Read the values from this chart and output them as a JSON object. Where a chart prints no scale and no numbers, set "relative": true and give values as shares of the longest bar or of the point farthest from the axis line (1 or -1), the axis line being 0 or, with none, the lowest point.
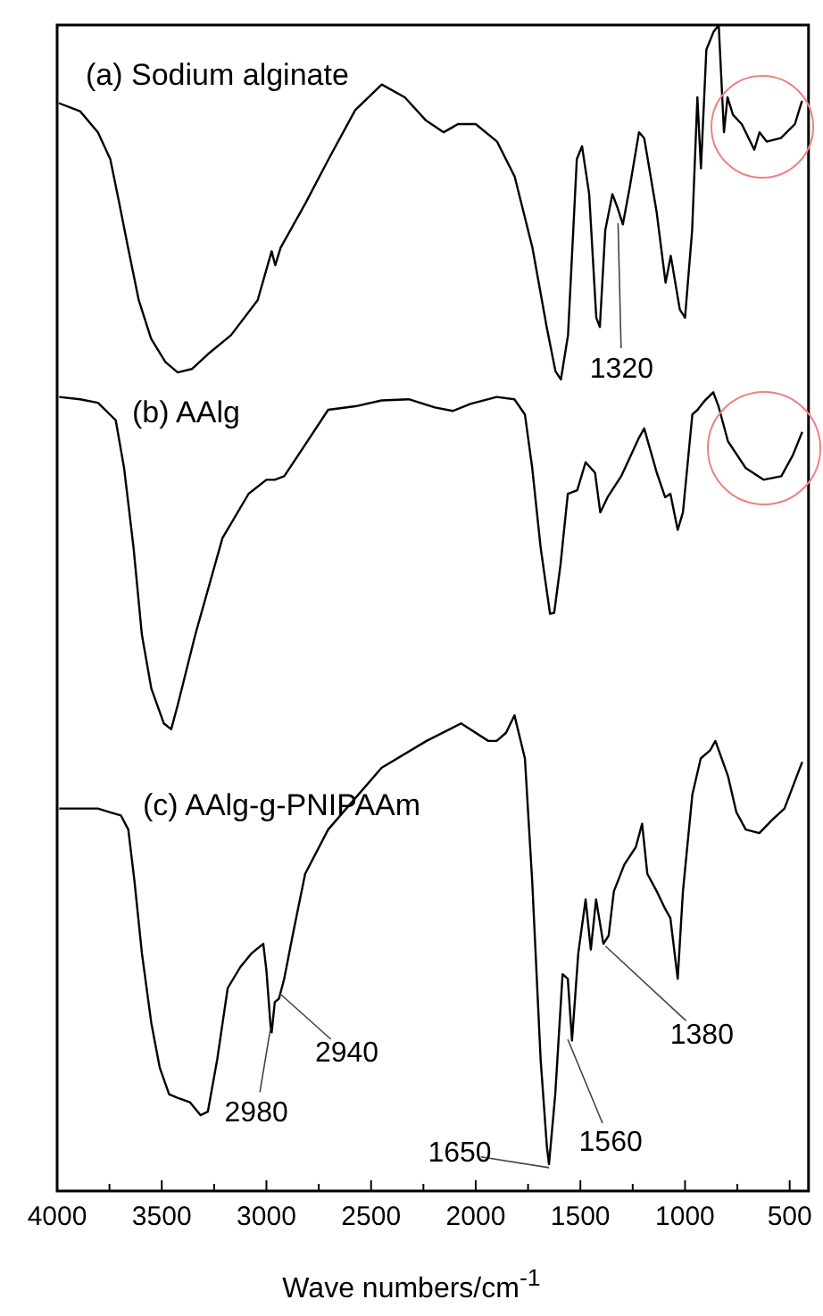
{
  "chart_data": {
    "type": "line",
    "relative": true,
    "xlabel": "Wave numbers/cm$^{-1}$",
    "xlim": [
      4000,
      410
    ],
    "xticks": [
      4000,
      {
        "value": 3750,
        "label": null
      },
      3500,
      {
        "value": 3250,
        "label": null
      },
      3000,
      {
        "value": 2750,
        "label": null
      },
      2500,
      {
        "value": 2250,
        "label": null
      },
      2000,
      {
        "value": 1750,
        "label": null
      },
      1500,
      {
        "value": 1250,
        "label": null
      },
      1000,
      {
        "value": 750,
        "label": null
      },
      500
    ],
    "series": [
      {
        "name": "(a) Sodium alginate",
        "color": "#000000",
        "x": [
          3992,
          3890,
          3805,
          3746,
          3703,
          3661,
          3610,
          3551,
          3483,
          3424,
          3356,
          3271,
          3169,
          3042,
          2975,
          2958,
          2932,
          2814,
          2703,
          2576,
          2449,
          2339,
          2237,
          2153,
          2085,
          2000,
          1898,
          1814,
          1729,
          1661,
          1619,
          1593,
          1559,
          1517,
          1492,
          1458,
          1424,
          1407,
          1381,
          1347,
          1322,
          1297,
          1263,
          1220,
          1195,
          1136,
          1093,
          1068,
          1025,
          1000,
          966,
          941,
          924,
          898,
          864,
          839,
          814,
          797,
          771,
          729,
          669,
          644,
          610,
          542,
          475,
          441
        ],
        "values": [
          0.933,
          0.926,
          0.908,
          0.885,
          0.847,
          0.809,
          0.764,
          0.731,
          0.711,
          0.702,
          0.705,
          0.719,
          0.734,
          0.764,
          0.806,
          0.794,
          0.809,
          0.847,
          0.885,
          0.927,
          0.949,
          0.938,
          0.918,
          0.908,
          0.915,
          0.915,
          0.9,
          0.87,
          0.809,
          0.741,
          0.703,
          0.696,
          0.734,
          0.885,
          0.896,
          0.855,
          0.749,
          0.741,
          0.824,
          0.855,
          0.843,
          0.829,
          0.862,
          0.908,
          0.903,
          0.84,
          0.779,
          0.802,
          0.756,
          0.749,
          0.824,
          0.938,
          0.877,
          0.979,
          0.994,
          1.0,
          0.908,
          0.938,
          0.923,
          0.915,
          0.893,
          0.908,
          0.9,
          0.903,
          0.915,
          0.935
        ]
      },
      {
        "name": "(b) AAlg",
        "color": "#000000",
        "x": [
          3990,
          3890,
          3805,
          3720,
          3680,
          3635,
          3595,
          3550,
          3490,
          3455,
          3425,
          3340,
          3210,
          3085,
          3000,
          2960,
          2915,
          2815,
          2705,
          2575,
          2450,
          2320,
          2195,
          2110,
          2025,
          1900,
          1815,
          1765,
          1730,
          1690,
          1645,
          1625,
          1595,
          1560,
          1515,
          1475,
          1430,
          1405,
          1370,
          1305,
          1220,
          1195,
          1135,
          1095,
          1070,
          1035,
          1010,
          965,
          940,
          905,
          865,
          840,
          795,
          710,
          625,
          540,
          485,
          440
        ],
        "values": [
          0.681,
          0.679,
          0.676,
          0.661,
          0.62,
          0.552,
          0.477,
          0.431,
          0.401,
          0.396,
          0.416,
          0.477,
          0.56,
          0.598,
          0.61,
          0.61,
          0.613,
          0.64,
          0.67,
          0.673,
          0.678,
          0.679,
          0.672,
          0.669,
          0.675,
          0.681,
          0.679,
          0.666,
          0.62,
          0.552,
          0.495,
          0.496,
          0.537,
          0.598,
          0.601,
          0.625,
          0.616,
          0.582,
          0.595,
          0.613,
          0.646,
          0.654,
          0.616,
          0.595,
          0.598,
          0.567,
          0.582,
          0.666,
          0.67,
          0.678,
          0.685,
          0.673,
          0.643,
          0.62,
          0.61,
          0.613,
          0.631,
          0.651
        ]
      },
      {
        "name": "(c) AAlg-g-PNIPAAm",
        "color": "#000000",
        "x": [
          3990,
          3890,
          3805,
          3750,
          3695,
          3660,
          3630,
          3595,
          3550,
          3510,
          3465,
          3425,
          3365,
          3315,
          3280,
          3235,
          3185,
          3125,
          3070,
          3015,
          3000,
          2980,
          2975,
          2960,
          2940,
          2915,
          2875,
          2815,
          2705,
          2575,
          2450,
          2235,
          2070,
          1940,
          1900,
          1855,
          1815,
          1765,
          1730,
          1690,
          1660,
          1650,
          1620,
          1585,
          1560,
          1540,
          1510,
          1475,
          1450,
          1425,
          1390,
          1365,
          1340,
          1290,
          1235,
          1205,
          1180,
          1135,
          1095,
          1070,
          1035,
          1010,
          965,
          925,
          880,
          855,
          795,
          755,
          710,
          645,
          585,
          525,
          440
        ],
        "values": [
          0.328,
          0.328,
          0.328,
          0.325,
          0.322,
          0.31,
          0.265,
          0.204,
          0.144,
          0.106,
          0.083,
          0.08,
          0.076,
          0.065,
          0.068,
          0.113,
          0.174,
          0.192,
          0.204,
          0.212,
          0.189,
          0.141,
          0.136,
          0.162,
          0.165,
          0.182,
          0.219,
          0.272,
          0.31,
          0.337,
          0.363,
          0.386,
          0.401,
          0.386,
          0.386,
          0.393,
          0.408,
          0.371,
          0.265,
          0.113,
          0.038,
          0.023,
          0.083,
          0.186,
          0.182,
          0.129,
          0.204,
          0.25,
          0.207,
          0.25,
          0.212,
          0.219,
          0.257,
          0.28,
          0.295,
          0.315,
          0.272,
          0.257,
          0.242,
          0.234,
          0.182,
          0.257,
          0.34,
          0.371,
          0.378,
          0.386,
          0.356,
          0.325,
          0.31,
          0.307,
          0.318,
          0.328,
          0.368
        ]
      }
    ],
    "annotations": [
      {
        "text": "1320",
        "x": 1320,
        "y": 0.83
      },
      {
        "text": "2980",
        "x": 2980,
        "y": 0.14
      },
      {
        "text": "2940",
        "x": 2940,
        "y": 0.17
      },
      {
        "text": "1650",
        "x": 1650,
        "y": 0.02
      },
      {
        "text": "1560",
        "x": 1560,
        "y": 0.13
      },
      {
        "text": "1380",
        "x": 1380,
        "y": 0.21
      }
    ]
  }
}
